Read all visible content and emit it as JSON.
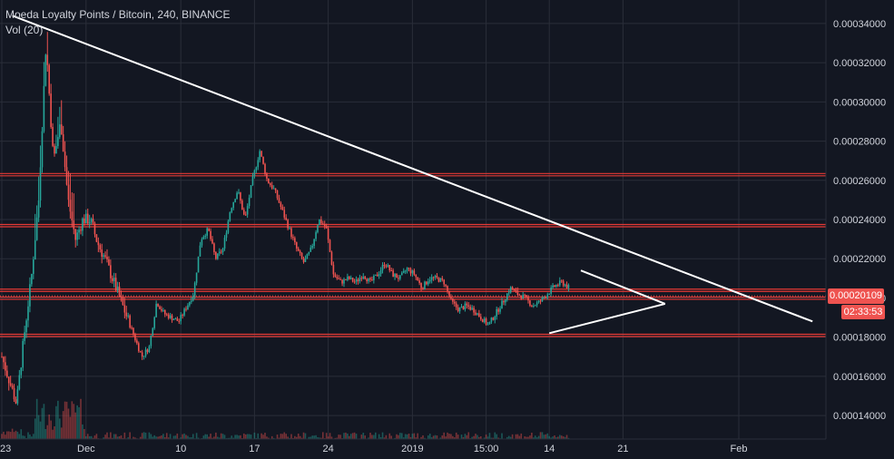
{
  "header": {
    "symbol_line": "Moeda Loyalty Points / Bitcoin, 240, BINANCE",
    "indicator_line": "Vol (20)"
  },
  "colors": {
    "background": "#131722",
    "grid": "#2a2e39",
    "up": "#26a69a",
    "down": "#ef5350",
    "level_line": "#e53935",
    "trend_line": "#ffffff",
    "axis_text": "#d1d4dc"
  },
  "price_badge": {
    "value": "0.00020109",
    "countdown": "02:33:53"
  },
  "chart_data": {
    "type": "candlestick",
    "title": "Moeda Loyalty Points / Bitcoin, 240, BINANCE",
    "y_ticks": [
      "0.00014000",
      "0.00016000",
      "0.00018000",
      "0.00020000",
      "0.00022000",
      "0.00024000",
      "0.00026000",
      "0.00028000",
      "0.00030000",
      "0.00032000",
      "0.00034000"
    ],
    "y_tick_values": [
      0.00014,
      0.00016,
      0.00018,
      0.0002,
      0.00022,
      0.00024,
      0.00026,
      0.00028,
      0.0003,
      0.00032,
      0.00034
    ],
    "ylim": [
      0.000128,
      0.000352
    ],
    "x_ticks": [
      "23",
      "Dec",
      "10",
      "17",
      "24",
      "2019",
      "15:00",
      "14",
      "21",
      "Feb"
    ],
    "x_tick_days": [
      0,
      8,
      17,
      24,
      31,
      39,
      46,
      52,
      59,
      70
    ],
    "x_axis_note": "days since Nov 23",
    "last_price": 0.00020109,
    "horizontal_levels": [
      {
        "price": 0.000263
      },
      {
        "price": 0.000237
      },
      {
        "price": 0.000204
      },
      {
        "price": 0.0002
      },
      {
        "price": 0.000181
      }
    ],
    "trend_lines": [
      {
        "from": [
          1,
          0.000344
        ],
        "to": [
          77,
          0.000188
        ]
      },
      {
        "from": [
          52,
          0.000182
        ],
        "to": [
          63,
          0.000197
        ]
      },
      {
        "from": [
          55,
          0.000214
        ],
        "to": [
          63,
          0.000197
        ]
      }
    ],
    "close_path": [
      [
        0,
        0.00017
      ],
      [
        0.7,
        0.000158
      ],
      [
        1.4,
        0.000146
      ],
      [
        2.1,
        0.00018
      ],
      [
        2.8,
        0.00021
      ],
      [
        3.5,
        0.00025
      ],
      [
        4.2,
        0.00033
      ],
      [
        4.9,
        0.00027
      ],
      [
        5.6,
        0.00029
      ],
      [
        6.3,
        0.00025
      ],
      [
        7,
        0.00023
      ],
      [
        7.7,
        0.00024
      ],
      [
        8.4,
        0.00024
      ],
      [
        9.1,
        0.000228
      ],
      [
        9.8,
        0.00022
      ],
      [
        10.5,
        0.00021
      ],
      [
        11.2,
        0.0002
      ],
      [
        11.9,
        0.00019
      ],
      [
        12.6,
        0.00018
      ],
      [
        13.3,
        0.00017
      ],
      [
        14,
        0.000175
      ],
      [
        14.7,
        0.000198
      ],
      [
        15.4,
        0.000192
      ],
      [
        16.1,
        0.00019
      ],
      [
        16.8,
        0.000188
      ],
      [
        17.5,
        0.000195
      ],
      [
        18.2,
        0.000202
      ],
      [
        18.9,
        0.00023
      ],
      [
        19.6,
        0.000235
      ],
      [
        20.3,
        0.00022
      ],
      [
        21,
        0.000225
      ],
      [
        21.7,
        0.000245
      ],
      [
        22.4,
        0.000255
      ],
      [
        23.1,
        0.00024
      ],
      [
        23.8,
        0.00026
      ],
      [
        24.5,
        0.000275
      ],
      [
        25.2,
        0.00026
      ],
      [
        25.9,
        0.000255
      ],
      [
        26.6,
        0.000245
      ],
      [
        27.3,
        0.000235
      ],
      [
        28,
        0.000225
      ],
      [
        28.7,
        0.000218
      ],
      [
        29.4,
        0.000225
      ],
      [
        30.1,
        0.00024
      ],
      [
        30.8,
        0.000236
      ],
      [
        31.5,
        0.000212
      ],
      [
        32.2,
        0.000208
      ],
      [
        32.9,
        0.00021
      ],
      [
        33.6,
        0.000208
      ],
      [
        34.3,
        0.000212
      ],
      [
        35,
        0.000208
      ],
      [
        35.7,
        0.000212
      ],
      [
        36.4,
        0.000218
      ],
      [
        37.1,
        0.000212
      ],
      [
        37.8,
        0.00021
      ],
      [
        38.5,
        0.000215
      ],
      [
        39.2,
        0.000212
      ],
      [
        39.9,
        0.000205
      ],
      [
        40.6,
        0.00021
      ],
      [
        41.3,
        0.00021
      ],
      [
        42,
        0.000208
      ],
      [
        42.7,
        0.000198
      ],
      [
        43.4,
        0.000194
      ],
      [
        44.1,
        0.000196
      ],
      [
        44.8,
        0.000194
      ],
      [
        45.5,
        0.00019
      ],
      [
        46.2,
        0.000186
      ],
      [
        46.9,
        0.000192
      ],
      [
        47.6,
        0.000198
      ],
      [
        48.3,
        0.000205
      ],
      [
        49,
        0.000202
      ],
      [
        49.7,
        0.0002
      ],
      [
        50.4,
        0.000196
      ],
      [
        51.1,
        0.000198
      ],
      [
        51.8,
        0.000202
      ],
      [
        52.5,
        0.000206
      ],
      [
        53.2,
        0.000208
      ],
      [
        53.9,
        0.000205
      ]
    ],
    "volume_ylim": [
      0,
      7e-05
    ]
  }
}
